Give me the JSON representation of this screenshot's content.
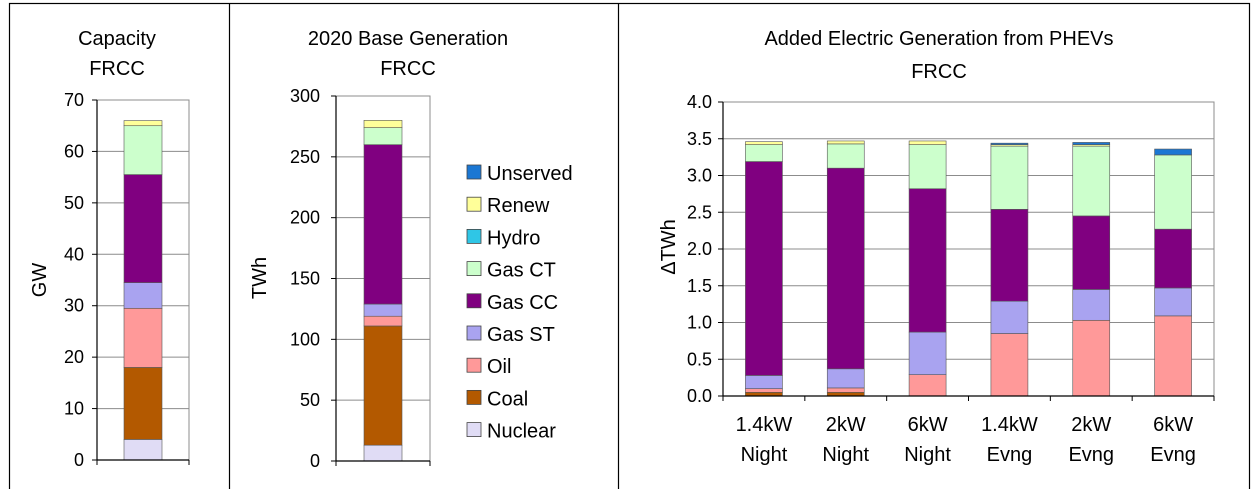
{
  "legend": [
    {
      "key": "Unserved",
      "label": "Unserved",
      "color": "#1b77d3"
    },
    {
      "key": "Renew",
      "label": "Renew",
      "color": "#ffff99"
    },
    {
      "key": "Hydro",
      "label": "Hydro",
      "color": "#2fc6e6"
    },
    {
      "key": "GasCT",
      "label": "Gas CT",
      "color": "#ccffcc"
    },
    {
      "key": "GasCC",
      "label": "Gas CC",
      "color": "#800080"
    },
    {
      "key": "GasST",
      "label": "Gas ST",
      "color": "#a9a3f0"
    },
    {
      "key": "Oil",
      "label": "Oil",
      "color": "#ff9999"
    },
    {
      "key": "Coal",
      "label": "Coal",
      "color": "#b35900"
    },
    {
      "key": "Nuclear",
      "label": "Nuclear",
      "color": "#e0dcf5"
    }
  ],
  "chart_data": [
    {
      "type": "bar",
      "stacked": true,
      "title": "Capacity",
      "subtitle": "FRCC",
      "xlabel": "",
      "ylabel": "GW",
      "ylim": [
        0,
        70
      ],
      "yticks": [
        "0",
        "10",
        "20",
        "30",
        "40",
        "50",
        "60",
        "70"
      ],
      "categories": [
        ""
      ],
      "series": [
        {
          "name": "Nuclear",
          "values": [
            4
          ]
        },
        {
          "name": "Coal",
          "values": [
            14
          ]
        },
        {
          "name": "Oil",
          "values": [
            11.5
          ]
        },
        {
          "name": "Gas ST",
          "values": [
            5
          ]
        },
        {
          "name": "Gas CC",
          "values": [
            21
          ]
        },
        {
          "name": "Gas CT",
          "values": [
            9.5
          ]
        },
        {
          "name": "Hydro",
          "values": [
            0
          ]
        },
        {
          "name": "Renew",
          "values": [
            1
          ]
        },
        {
          "name": "Unserved",
          "values": [
            0
          ]
        }
      ]
    },
    {
      "type": "bar",
      "stacked": true,
      "title": "2020 Base Generation",
      "subtitle": "FRCC",
      "xlabel": "",
      "ylabel": "TWh",
      "ylim": [
        0,
        300
      ],
      "yticks": [
        "0",
        "50",
        "100",
        "150",
        "200",
        "250",
        "300"
      ],
      "categories": [
        ""
      ],
      "series": [
        {
          "name": "Nuclear",
          "values": [
            13
          ]
        },
        {
          "name": "Coal",
          "values": [
            98
          ]
        },
        {
          "name": "Oil",
          "values": [
            8
          ]
        },
        {
          "name": "Gas ST",
          "values": [
            10
          ]
        },
        {
          "name": "Gas CC",
          "values": [
            131
          ]
        },
        {
          "name": "Gas CT",
          "values": [
            14
          ]
        },
        {
          "name": "Hydro",
          "values": [
            0
          ]
        },
        {
          "name": "Renew",
          "values": [
            6
          ]
        },
        {
          "name": "Unserved",
          "values": [
            0
          ]
        }
      ]
    },
    {
      "type": "bar",
      "stacked": true,
      "title": "Added Electric Generation from PHEVs",
      "subtitle": "FRCC",
      "xlabel": "",
      "ylabel": "ΔTWh",
      "ylim": [
        0,
        4.0
      ],
      "yticks": [
        "0.0",
        "0.5",
        "1.0",
        "1.5",
        "2.0",
        "2.5",
        "3.0",
        "3.5",
        "4.0"
      ],
      "categories": [
        [
          "1.4kW",
          "Night"
        ],
        [
          "2kW",
          "Night"
        ],
        [
          "6kW",
          "Night"
        ],
        [
          "1.4kW",
          "Evng"
        ],
        [
          "2kW",
          "Evng"
        ],
        [
          "6kW",
          "Evng"
        ]
      ],
      "series": [
        {
          "name": "Nuclear",
          "values": [
            0,
            0,
            0,
            0,
            0,
            0
          ]
        },
        {
          "name": "Coal",
          "values": [
            0.05,
            0.05,
            0,
            0,
            0,
            0
          ]
        },
        {
          "name": "Oil",
          "values": [
            0.05,
            0.06,
            0.29,
            0.85,
            1.03,
            1.09
          ]
        },
        {
          "name": "Gas ST",
          "values": [
            0.18,
            0.26,
            0.58,
            0.44,
            0.42,
            0.38
          ]
        },
        {
          "name": "Gas CC",
          "values": [
            2.91,
            2.73,
            1.95,
            1.25,
            1.0,
            0.8
          ]
        },
        {
          "name": "Gas CT",
          "values": [
            0.23,
            0.33,
            0.6,
            0.86,
            0.95,
            1.01
          ]
        },
        {
          "name": "Hydro",
          "values": [
            0,
            0,
            0,
            0,
            0,
            0
          ]
        },
        {
          "name": "Renew",
          "values": [
            0.04,
            0.04,
            0.05,
            0.02,
            0.02,
            0
          ]
        },
        {
          "name": "Unserved",
          "values": [
            0,
            0,
            0,
            0.02,
            0.03,
            0.08
          ]
        }
      ]
    }
  ]
}
